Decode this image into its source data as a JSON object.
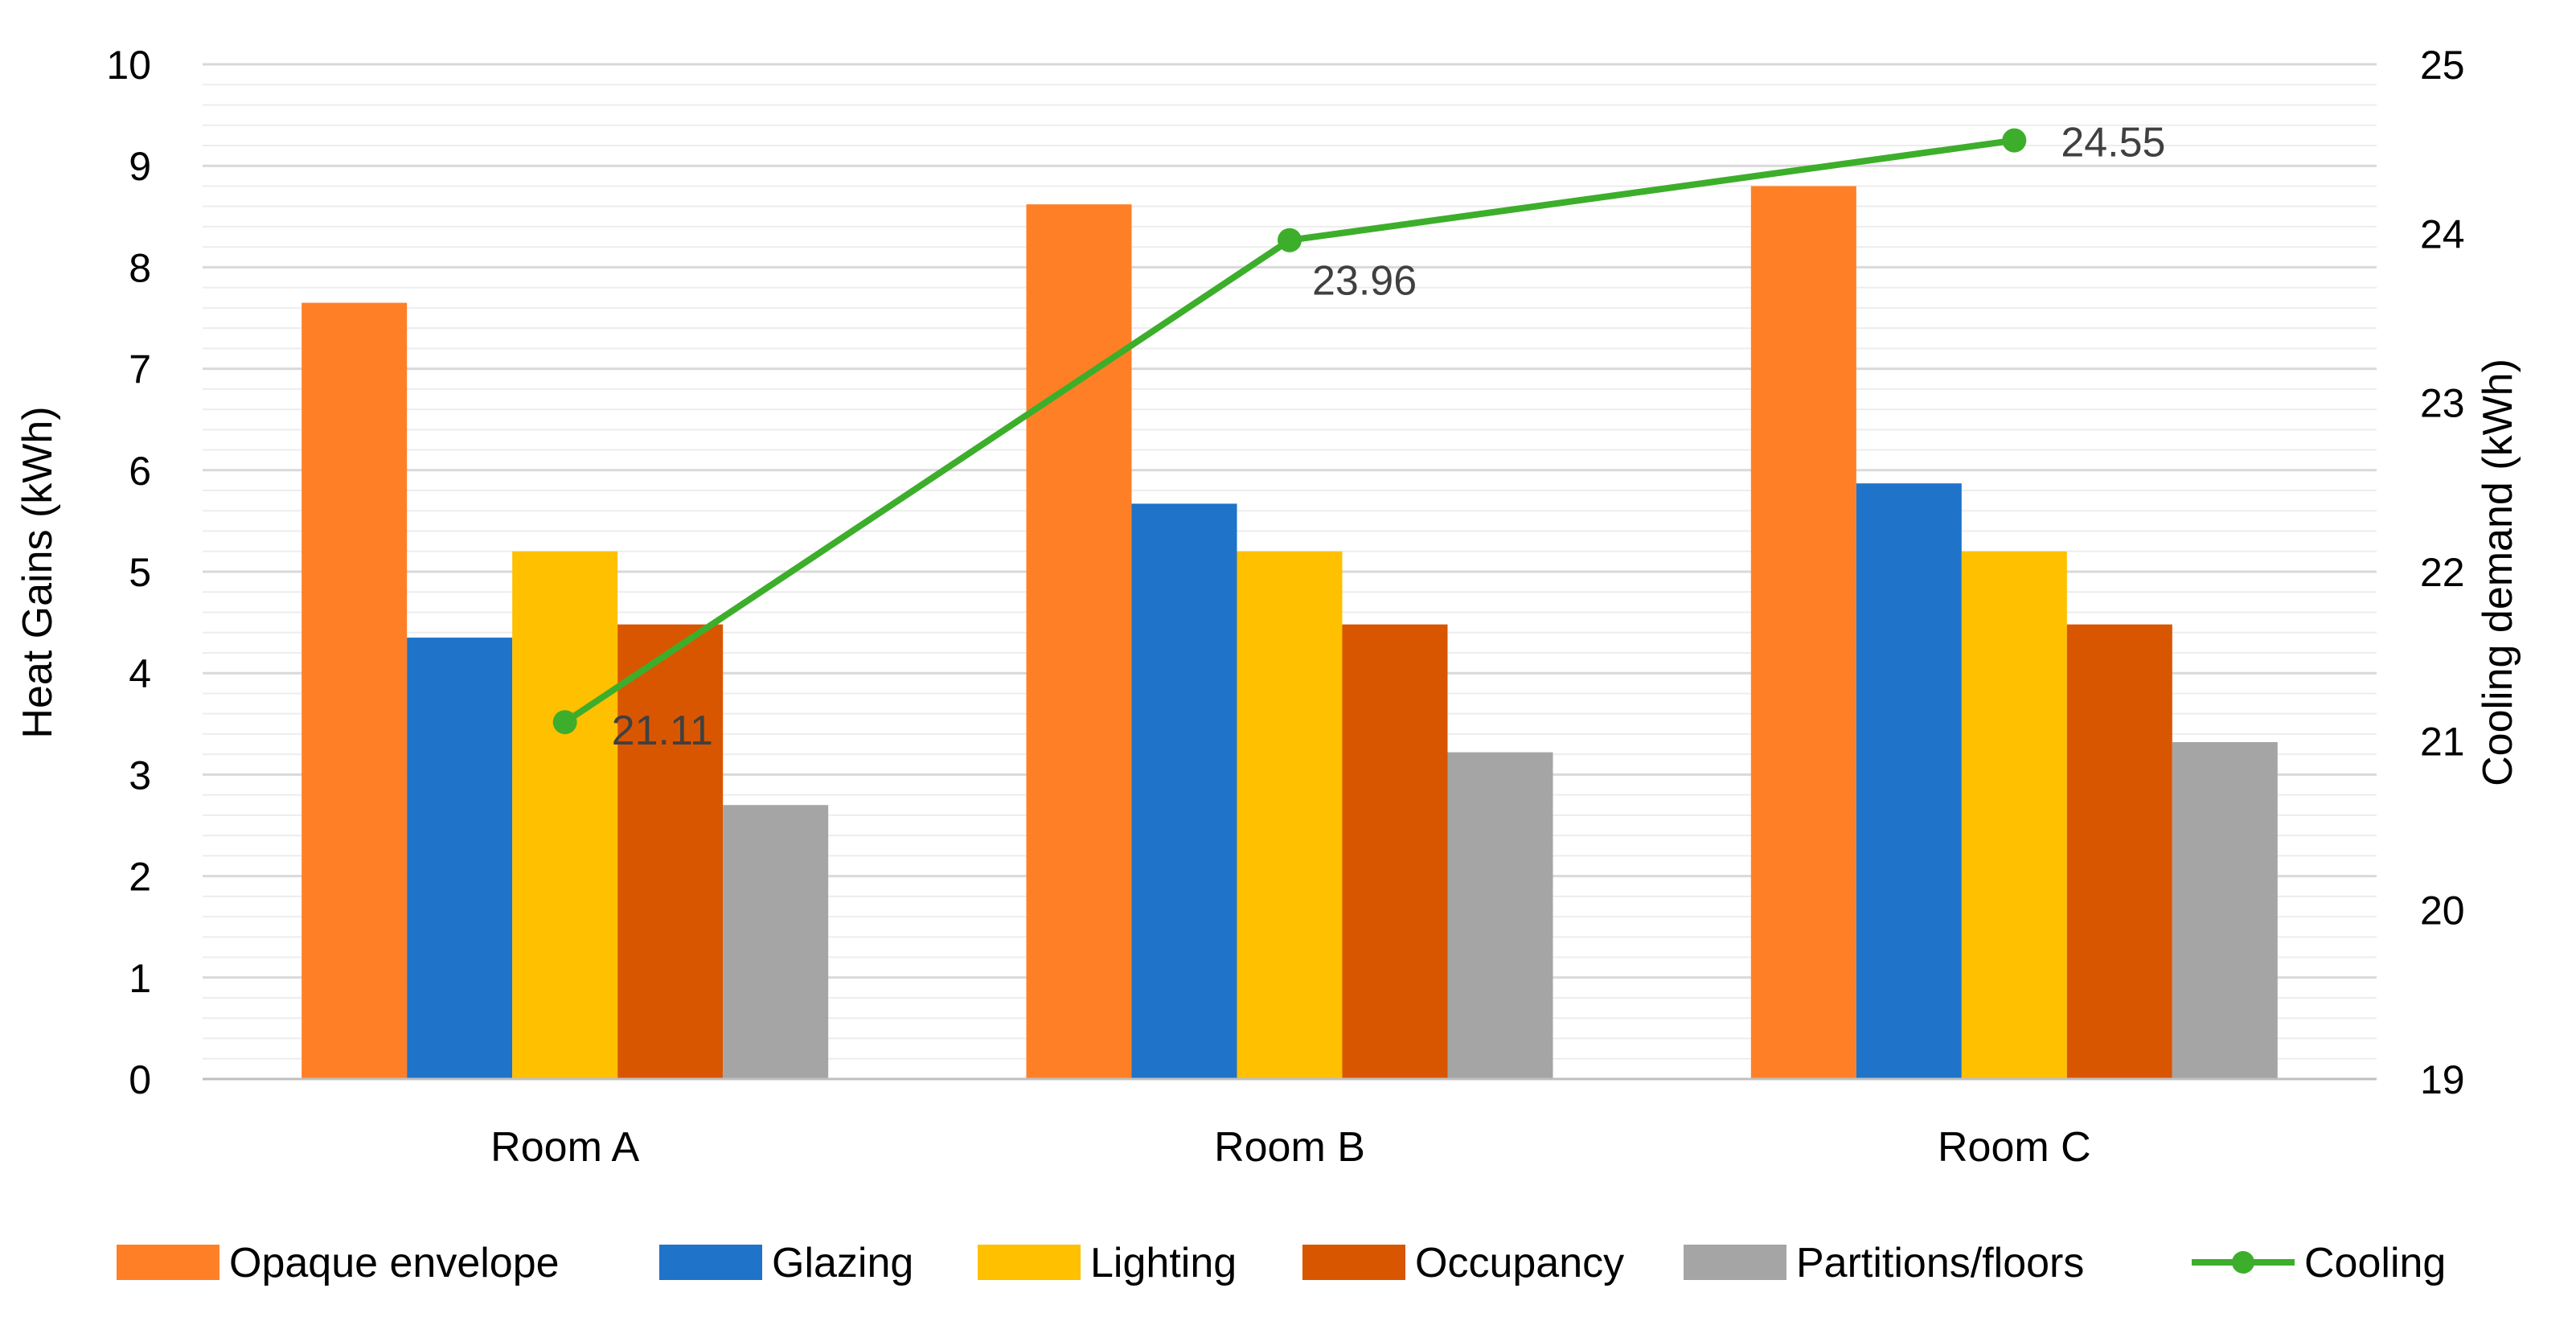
{
  "chart_data": {
    "type": "bar",
    "categories": [
      "Room A",
      "Room B",
      "Room C"
    ],
    "series": [
      {
        "name": "Opaque envelope",
        "axis": "left",
        "color": "#FF7F27",
        "values": [
          7.65,
          8.62,
          8.8
        ]
      },
      {
        "name": "Glazing",
        "axis": "left",
        "color": "#1F73C8",
        "values": [
          4.35,
          5.67,
          5.87
        ]
      },
      {
        "name": "Lighting",
        "axis": "left",
        "color": "#FFC000",
        "values": [
          5.2,
          5.2,
          5.2
        ]
      },
      {
        "name": "Occupancy",
        "axis": "left",
        "color": "#D95600",
        "values": [
          4.48,
          4.48,
          4.48
        ]
      },
      {
        "name": "Partitions/floors",
        "axis": "left",
        "color": "#A5A5A5",
        "values": [
          2.7,
          3.22,
          3.32
        ]
      }
    ],
    "line_series": {
      "name": "Cooling",
      "type": "line",
      "axis": "right",
      "color": "#3DAE2B",
      "values": [
        21.11,
        23.96,
        24.55
      ],
      "data_labels": [
        "21.11",
        "23.96",
        "24.55"
      ]
    },
    "y_left": {
      "label": "Heat Gains (kWh)",
      "min": 0,
      "max": 10,
      "ticks": [
        "0",
        "1",
        "2",
        "3",
        "4",
        "5",
        "6",
        "7",
        "8",
        "9",
        "10"
      ]
    },
    "y_right": {
      "label": "Cooling demand (kWh)",
      "min": 19,
      "max": 25,
      "ticks": [
        "19",
        "20",
        "21",
        "22",
        "23",
        "24",
        "25"
      ]
    },
    "grid": true,
    "legend_position": "bottom"
  }
}
